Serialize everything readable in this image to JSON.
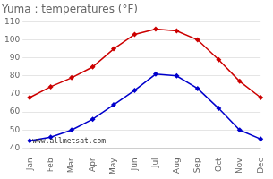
{
  "chart_data": {
    "type": "line",
    "title": "Yuma : temperatures (°F)",
    "categories": [
      "Jan",
      "Feb",
      "Mar",
      "Apr",
      "May",
      "Jun",
      "Jul",
      "Aug",
      "Sep",
      "Oct",
      "Nov",
      "Dec"
    ],
    "series": [
      {
        "color": "#cc0000",
        "values": [
          68,
          74,
          79,
          85,
          95,
          103,
          106,
          105,
          100,
          89,
          77,
          68
        ]
      },
      {
        "color": "#0000cc",
        "values": [
          44,
          46,
          50,
          56,
          64,
          72,
          81,
          80,
          73,
          62,
          50,
          45
        ]
      }
    ],
    "ylim": [
      40,
      110
    ],
    "yticks": [
      40,
      50,
      60,
      70,
      80,
      90,
      100,
      110
    ],
    "grid": "y",
    "marker": "diamond",
    "annotations": [
      "www.allmetsat.com"
    ]
  }
}
